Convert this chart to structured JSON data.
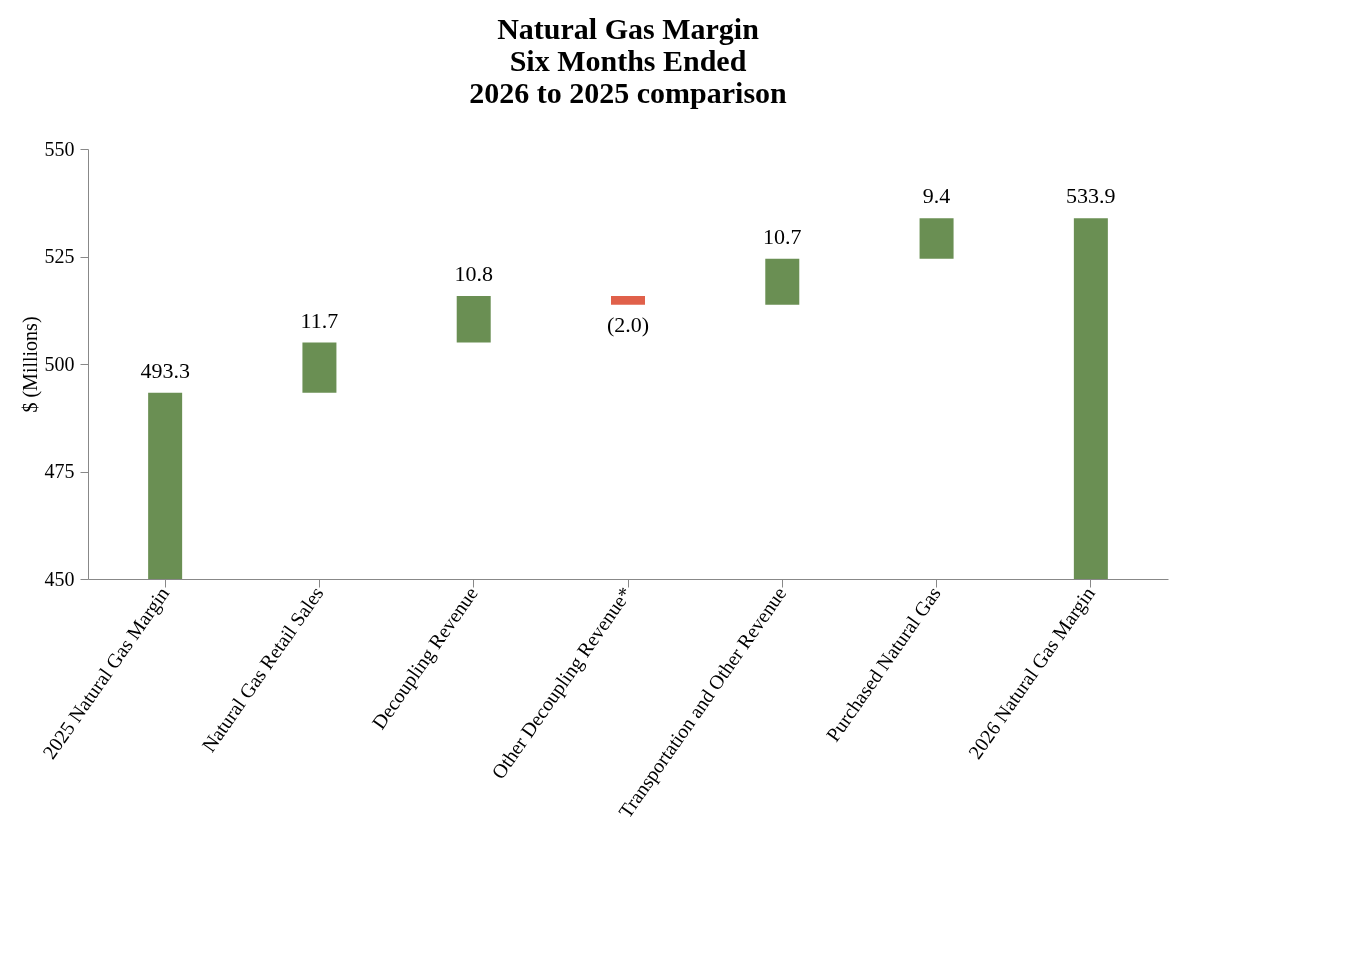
{
  "chart_data": {
    "type": "bar",
    "title": "Natural Gas Margin\nSix Months Ended\n2026 to 2025 comparison",
    "ylabel": "$ (Millions)",
    "categories": [
      "2025 Natural Gas Margin",
      "Natural Gas Retail Sales",
      "Decoupling Revenue",
      "Other Decoupling Revenue*",
      "Transportation and Other Revenue",
      "Purchased Natural Gas",
      "2026 Natural Gas Margin"
    ],
    "values": [
      493.3,
      11.7,
      10.8,
      -2.0,
      10.7,
      9.4,
      533.9
    ],
    "base": [
      0,
      493.3,
      505.0,
      515.8,
      513.8,
      524.5,
      0
    ],
    "colors": [
      "#6a8f53",
      "#6a8f53",
      "#6a8f53",
      "#e0604a",
      "#6a8f53",
      "#6a8f53",
      "#6a8f53"
    ],
    "value_labels": [
      "493.3",
      "11.7",
      "10.8",
      "(2.0)",
      "10.7",
      "9.4",
      "533.9"
    ],
    "ylim": [
      450,
      550
    ],
    "yticks": [
      450,
      475,
      500,
      525,
      550
    ],
    "grid": false
  }
}
